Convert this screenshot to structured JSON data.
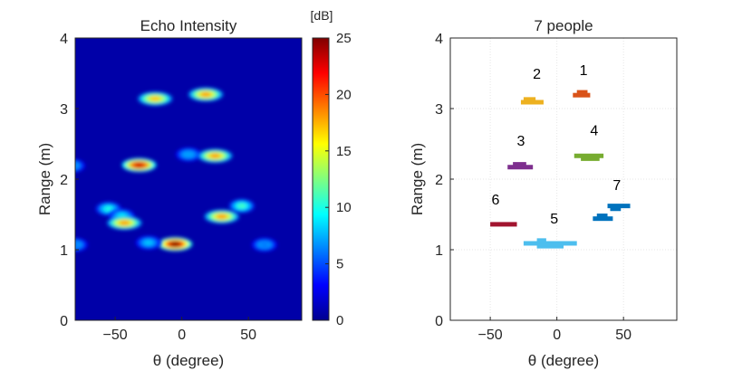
{
  "chart_data": [
    {
      "type": "heatmap",
      "title": "Echo Intensity",
      "xlabel": "θ (degree)",
      "ylabel": "Range (m)",
      "xlim": [
        -80,
        90
      ],
      "ylim": [
        0,
        4
      ],
      "xticks": [
        -50,
        0,
        50
      ],
      "yticks": [
        0,
        1,
        2,
        3,
        4
      ],
      "colorbar": {
        "label": "[dB]",
        "range": [
          0,
          25
        ],
        "ticks": [
          0,
          5,
          10,
          15,
          20,
          25
        ],
        "colormap": "jet"
      },
      "background_level_db": 1,
      "blobs": [
        {
          "theta": -20,
          "range": 3.14,
          "intensity_db": 17
        },
        {
          "theta": 18,
          "range": 3.2,
          "intensity_db": 18
        },
        {
          "theta": -32,
          "range": 2.2,
          "intensity_db": 23
        },
        {
          "theta": 5,
          "range": 2.35,
          "intensity_db": 7
        },
        {
          "theta": 25,
          "range": 2.33,
          "intensity_db": 18
        },
        {
          "theta": -55,
          "range": 1.58,
          "intensity_db": 10
        },
        {
          "theta": -45,
          "range": 1.48,
          "intensity_db": 9
        },
        {
          "theta": -43,
          "range": 1.38,
          "intensity_db": 18
        },
        {
          "theta": 45,
          "range": 1.62,
          "intensity_db": 11
        },
        {
          "theta": 30,
          "range": 1.47,
          "intensity_db": 18
        },
        {
          "theta": -5,
          "range": 1.08,
          "intensity_db": 25
        },
        {
          "theta": -25,
          "range": 1.1,
          "intensity_db": 8
        },
        {
          "theta": -82,
          "range": 2.19,
          "intensity_db": 6
        },
        {
          "theta": -80,
          "range": 1.07,
          "intensity_db": 6
        },
        {
          "theta": 62,
          "range": 1.07,
          "intensity_db": 6
        }
      ],
      "grid": false
    },
    {
      "type": "scatter",
      "title": "7 people",
      "xlabel": "θ (degree)",
      "ylabel": "Range (m)",
      "xlim": [
        -80,
        90
      ],
      "ylim": [
        0,
        4
      ],
      "xticks": [
        -50,
        0,
        50
      ],
      "yticks": [
        0,
        1,
        2,
        3,
        4
      ],
      "grid": true,
      "people": [
        {
          "label": "1",
          "color": "#d95319",
          "label_theta": 20,
          "label_range": 3.55,
          "segments": [
            {
              "t0": 12,
              "t1": 25,
              "r": 3.19
            },
            {
              "t0": 15,
              "t1": 23,
              "r": 3.23
            }
          ]
        },
        {
          "label": "2",
          "color": "#edb120",
          "label_theta": -15,
          "label_range": 3.5,
          "segments": [
            {
              "t0": -27,
              "t1": -10,
              "r": 3.09
            },
            {
              "t0": -25,
              "t1": -16,
              "r": 3.13
            }
          ]
        },
        {
          "label": "3",
          "color": "#7e2f8e",
          "label_theta": -27,
          "label_range": 2.55,
          "segments": [
            {
              "t0": -37,
              "t1": -18,
              "r": 2.17
            },
            {
              "t0": -33,
              "t1": -23,
              "r": 2.21
            }
          ]
        },
        {
          "label": "4",
          "color": "#77ac30",
          "label_theta": 28,
          "label_range": 2.7,
          "segments": [
            {
              "t0": 13,
              "t1": 35,
              "r": 2.33
            },
            {
              "t0": 18,
              "t1": 32,
              "r": 2.29
            }
          ]
        },
        {
          "label": "5",
          "color": "#4dbeee",
          "label_theta": -2,
          "label_range": 1.45,
          "segments": [
            {
              "t0": -25,
              "t1": 15,
              "r": 1.09
            },
            {
              "t0": -15,
              "t1": 5,
              "r": 1.05
            },
            {
              "t0": -15,
              "t1": -8,
              "r": 1.13
            }
          ]
        },
        {
          "label": "6",
          "color": "#a2142f",
          "label_theta": -46,
          "label_range": 1.72,
          "segments": [
            {
              "t0": -50,
              "t1": -30,
              "r": 1.36
            }
          ]
        },
        {
          "label": "7",
          "color": "#0072bd",
          "label_theta": 45,
          "label_range": 1.92,
          "segments": [
            {
              "t0": 27,
              "t1": 42,
              "r": 1.44
            },
            {
              "t0": 30,
              "t1": 38,
              "r": 1.48
            },
            {
              "t0": 38,
              "t1": 55,
              "r": 1.62
            },
            {
              "t0": 40,
              "t1": 48,
              "r": 1.58
            }
          ]
        }
      ]
    }
  ]
}
